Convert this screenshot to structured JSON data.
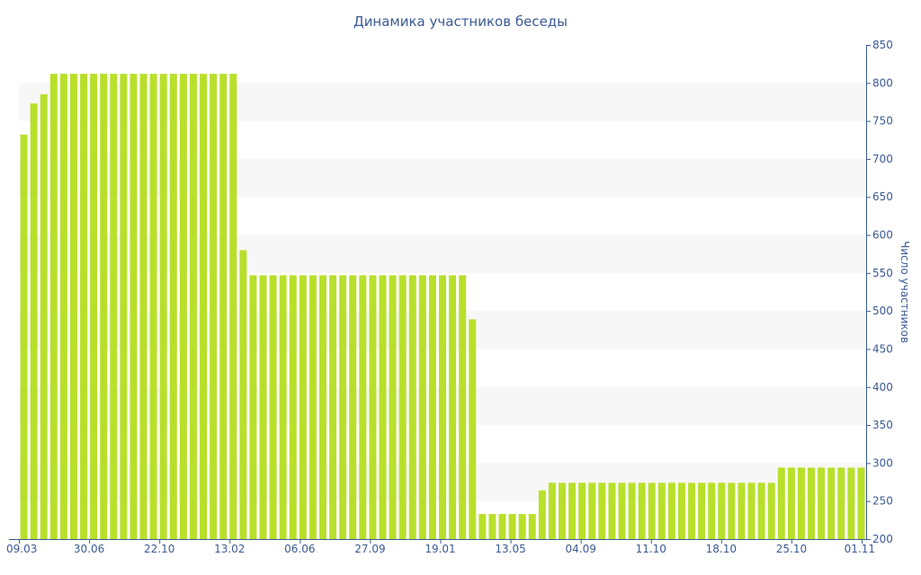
{
  "chart_data": {
    "type": "bar",
    "title": "Динамика участников беседы",
    "xlabel": "",
    "ylabel": "Число участников",
    "ylim": [
      200,
      850
    ],
    "yticks": [
      200,
      250,
      300,
      350,
      400,
      450,
      500,
      550,
      600,
      650,
      700,
      750,
      800,
      850
    ],
    "y_axis_position": "right",
    "grid": "alternating horizontal bands",
    "bar_color": "#b8e02a",
    "band_color": "#f7f7f7",
    "text_color": "#3a5a94",
    "xtick_labels": [
      "09.03",
      "30.06",
      "22.10",
      "13.02",
      "06.06",
      "27.09",
      "19.01",
      "13.05",
      "04.09",
      "11.10",
      "18.10",
      "25.10",
      "01.11"
    ],
    "values": [
      732,
      773,
      785,
      812,
      812,
      812,
      812,
      812,
      812,
      812,
      812,
      812,
      812,
      812,
      812,
      812,
      812,
      812,
      812,
      812,
      812,
      812,
      580,
      547,
      547,
      547,
      547,
      547,
      547,
      547,
      547,
      547,
      547,
      547,
      547,
      547,
      547,
      547,
      547,
      547,
      547,
      547,
      547,
      547,
      547,
      489,
      233,
      233,
      233,
      233,
      233,
      233,
      264,
      274,
      274,
      274,
      274,
      274,
      274,
      274,
      274,
      274,
      274,
      274,
      274,
      274,
      274,
      274,
      274,
      274,
      274,
      274,
      274,
      274,
      274,
      274,
      294,
      294,
      294,
      294,
      294,
      294,
      294,
      294,
      294
    ]
  }
}
